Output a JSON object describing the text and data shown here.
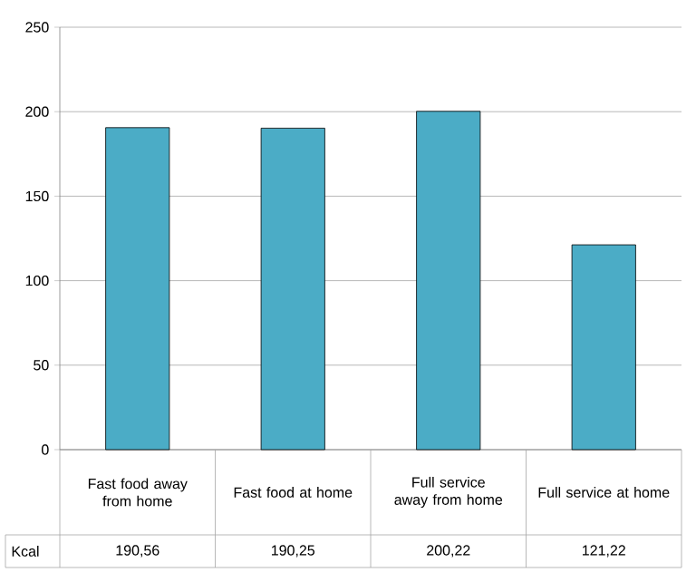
{
  "chart_data": {
    "type": "bar",
    "categories": [
      "Fast food away from home",
      "Fast food at home",
      "Full service away from home",
      "Full service at home"
    ],
    "series": [
      {
        "name": "Kcal",
        "color": "#4bacc6",
        "values": [
          190.56,
          190.25,
          200.22,
          121.22
        ],
        "value_labels": [
          "190,56",
          "190,25",
          "200,22",
          "121,22"
        ]
      }
    ],
    "ylim": [
      0,
      250
    ],
    "yticks": [
      0,
      50,
      100,
      150,
      200,
      250
    ],
    "grid": "y"
  }
}
